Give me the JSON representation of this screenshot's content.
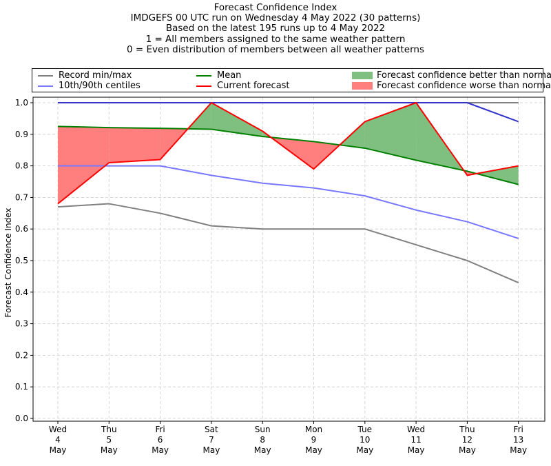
{
  "title_lines": [
    "Forecast Confidence Index",
    "IMDGEFS 00 UTC run on Wednesday 4 May 2022 (30 patterns)",
    "Based on the latest 195 runs up to 4 May 2022",
    "1 = All members assigned to the same weather pattern",
    "0 = Even distribution of members between all weather patterns"
  ],
  "legend": {
    "record": "Record min/max",
    "centiles": "10th/90th centiles",
    "mean": "Mean",
    "current": "Current forecast",
    "better": "Forecast confidence better than normal",
    "worse": "Forecast confidence worse than normal"
  },
  "colors": {
    "record": "#808080",
    "centiles": "#7777ff",
    "mean": "#008000",
    "current": "#ff0000",
    "better_fill": "#7fbf7f",
    "worse_fill": "#ff7f7f",
    "max_line": "#3333cc",
    "grid": "#cccccc"
  },
  "chart_data": {
    "type": "line",
    "ylabel": "Forecast Confidence Index",
    "xlabel": "",
    "ylim": [
      0.0,
      1.0
    ],
    "yticks": [
      "0.0",
      "0.1",
      "0.2",
      "0.3",
      "0.4",
      "0.5",
      "0.6",
      "0.7",
      "0.8",
      "0.9",
      "1.0"
    ],
    "grid": true,
    "legend_position": "top, above plot",
    "categories": [
      [
        "Wed",
        "4",
        "May"
      ],
      [
        "Thu",
        "5",
        "May"
      ],
      [
        "Fri",
        "6",
        "May"
      ],
      [
        "Sat",
        "7",
        "May"
      ],
      [
        "Sun",
        "8",
        "May"
      ],
      [
        "Mon",
        "9",
        "May"
      ],
      [
        "Tue",
        "10",
        "May"
      ],
      [
        "Wed",
        "11",
        "May"
      ],
      [
        "Thu",
        "12",
        "May"
      ],
      [
        "Fri",
        "13",
        "May"
      ]
    ],
    "series": [
      {
        "name": "Record max",
        "legend": "record",
        "values": [
          1.0,
          1.0,
          1.0,
          1.0,
          1.0,
          1.0,
          1.0,
          1.0,
          1.0,
          1.0
        ]
      },
      {
        "name": "Record min",
        "legend": "record",
        "values": [
          0.67,
          0.68,
          0.65,
          0.61,
          0.6,
          0.6,
          0.6,
          0.55,
          0.5,
          0.43
        ]
      },
      {
        "name": "90th centile",
        "legend": "centiles",
        "values": [
          1.0,
          1.0,
          1.0,
          1.0,
          1.0,
          1.0,
          1.0,
          1.0,
          1.0,
          0.94
        ]
      },
      {
        "name": "10th centile",
        "legend": "centiles",
        "values": [
          0.8,
          0.8,
          0.8,
          0.77,
          0.745,
          0.73,
          0.705,
          0.66,
          0.623,
          0.57
        ]
      },
      {
        "name": "Mean",
        "legend": "mean",
        "values": [
          0.925,
          0.921,
          0.919,
          0.916,
          0.893,
          0.877,
          0.856,
          0.818,
          0.783,
          0.741
        ]
      },
      {
        "name": "Current forecast",
        "legend": "current",
        "values": [
          0.68,
          0.81,
          0.82,
          1.0,
          0.91,
          0.79,
          0.94,
          1.0,
          0.77,
          0.8
        ]
      }
    ]
  }
}
